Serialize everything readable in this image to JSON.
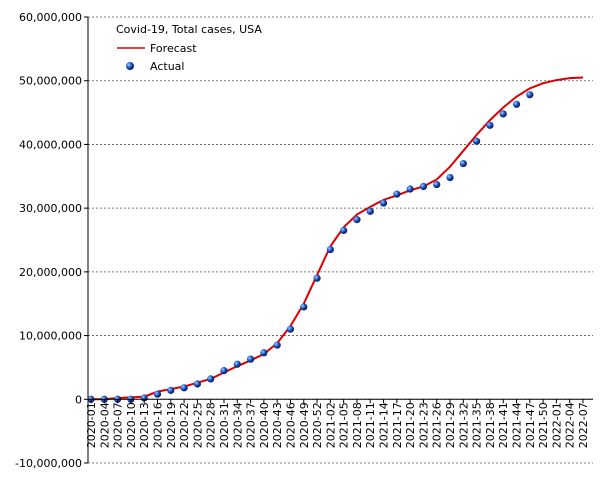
{
  "chart_data": {
    "type": "line",
    "legend_title": "Covid-19, Total cases, USA",
    "categories": [
      "2020-01",
      "2020-04",
      "2020-07",
      "2020-10",
      "2020-13",
      "2020-16",
      "2020-19",
      "2020-22",
      "2020-25",
      "2020-28",
      "2020-31",
      "2020-34",
      "2020-37",
      "2020-40",
      "2020-43",
      "2020-46",
      "2020-49",
      "2020-52",
      "2021-02",
      "2021-05",
      "2021-08",
      "2021-11",
      "2021-14",
      "2021-17",
      "2021-20",
      "2021-23",
      "2021-26",
      "2021-29",
      "2021-32",
      "2021-35",
      "2021-38",
      "2021-41",
      "2021-44",
      "2021-47",
      "2021-50",
      "2022-01",
      "2022-04",
      "2022-07"
    ],
    "series": [
      {
        "name": "Forecast",
        "color": "#dd0000",
        "style": "line",
        "values": [
          0,
          0,
          200000,
          300000,
          400000,
          1200000,
          1600000,
          2000000,
          2600000,
          3200000,
          4200000,
          5200000,
          6100000,
          7100000,
          8800000,
          11500000,
          15000000,
          19500000,
          24000000,
          27000000,
          29000000,
          30200000,
          31300000,
          32000000,
          32800000,
          33400000,
          34500000,
          36500000,
          39000000,
          41500000,
          43800000,
          45800000,
          47500000,
          48800000,
          49600000,
          50100000,
          50400000,
          50500000
        ]
      },
      {
        "name": "Actual",
        "color": "#1a4fc0",
        "style": "marker",
        "values": [
          0,
          0,
          0,
          0,
          200000,
          800000,
          1400000,
          1800000,
          2400000,
          3200000,
          4500000,
          5500000,
          6300000,
          7300000,
          8500000,
          11000000,
          14500000,
          19000000,
          23500000,
          26500000,
          28200000,
          29500000,
          30800000,
          32200000,
          33000000,
          33400000,
          33700000,
          34800000,
          37000000,
          40500000,
          43000000,
          44800000,
          46300000,
          47800000,
          null,
          null,
          null,
          null
        ]
      }
    ],
    "ylim": [
      -10000000,
      60000000
    ],
    "yticks": [
      {
        "value": -10000000,
        "label": "-10,000,000"
      },
      0,
      {
        "value": 10000000,
        "label": "10,000,000"
      },
      {
        "value": 20000000,
        "label": "20,000,000"
      },
      {
        "value": 30000000,
        "label": "30,000,000"
      },
      {
        "value": 40000000,
        "label": "40,000,000"
      },
      {
        "value": 50000000,
        "label": "50,000,000"
      },
      {
        "value": 60000000,
        "label": "60,000,000"
      }
    ],
    "grid": true
  }
}
